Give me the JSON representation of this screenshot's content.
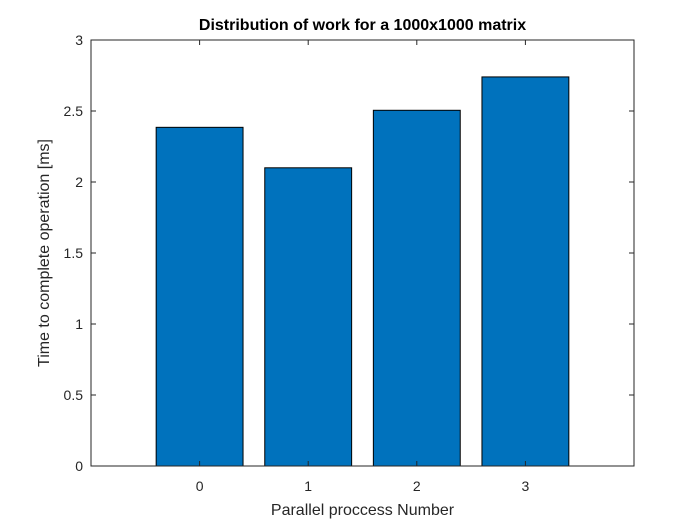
{
  "chart_data": {
    "type": "bar",
    "title": "Distribution of work for a 1000x1000 matrix",
    "xlabel": "Parallel proccess Number",
    "ylabel": "Time to complete operation [ms]",
    "categories": [
      "0",
      "1",
      "2",
      "3"
    ],
    "values": [
      2.385,
      2.1,
      2.505,
      2.74
    ],
    "xlim": [
      -1,
      4
    ],
    "ylim": [
      0,
      3
    ],
    "yticks": [
      0,
      0.5,
      1,
      1.5,
      2,
      2.5,
      3
    ],
    "ytick_labels": [
      "0",
      "0.5",
      "1",
      "1.5",
      "2",
      "2.5",
      "3"
    ],
    "grid": false,
    "box": true,
    "colors": {
      "bar_fill": "#0072BD",
      "bar_edge": "#000000",
      "axis": "#262626",
      "background": "#ffffff"
    }
  }
}
